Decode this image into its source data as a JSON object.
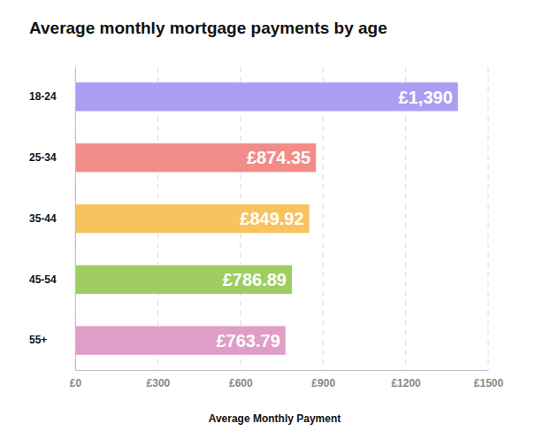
{
  "chart_data": {
    "type": "bar",
    "title": "Average monthly mortgage payments by age",
    "orientation": "horizontal",
    "categories": [
      "18-24",
      "25-34",
      "35-44",
      "45-54",
      "55+"
    ],
    "values": [
      1390,
      874.35,
      849.92,
      786.89,
      763.79
    ],
    "value_labels": [
      "£1,390",
      "£874.35",
      "£849.92",
      "£786.89",
      "£763.79"
    ],
    "colors": [
      "#aa9ef3",
      "#f28c88",
      "#f7c35f",
      "#a0cc64",
      "#e09dc8"
    ],
    "x_label": "Average Monthly Payment",
    "xlim": [
      0,
      1500
    ],
    "xticks": [
      {
        "value": 0,
        "label": "£0"
      },
      {
        "value": 300,
        "label": "£300"
      },
      {
        "value": 600,
        "label": "£600"
      },
      {
        "value": 900,
        "label": "£900"
      },
      {
        "value": 1200,
        "label": "£1200"
      },
      {
        "value": 1500,
        "label": "£1500"
      }
    ],
    "grid": true,
    "data_labels": true
  }
}
